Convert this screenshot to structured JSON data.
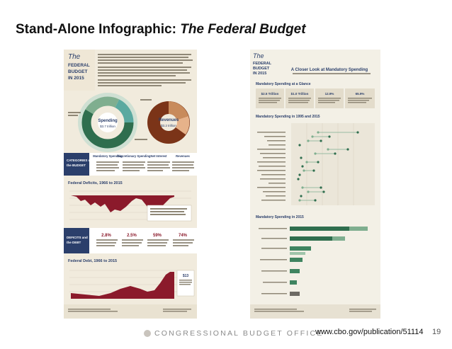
{
  "slide": {
    "title_prefix": "Stand-Alone Infographic: ",
    "title_italic": "The Federal Budget",
    "footer_org": "CONGRESSIONAL BUDGET OFFICE",
    "footer_url": "www.cbo.gov/publication/51114",
    "page_number": "19"
  },
  "left_infographic": {
    "title_line1": "The",
    "title_line2": "FEDERAL",
    "title_line3": "BUDGET",
    "title_line4": "IN 2015",
    "spending_label": "Spending",
    "spending_value": "$3.7 trillion",
    "revenues_label": "Revenues",
    "revenues_value": "$3.2 trillion",
    "categories_label_1": "CATEGORIES of",
    "categories_label_2": "the BUDGET",
    "category_mandatory": "Mandatory Spending",
    "category_discretionary": "Discretionary Spending",
    "category_net_interest": "Net Interest",
    "category_revenues": "Revenues",
    "deficits_title": "Federal Deficits, 1966 to 2015",
    "deficit_label_1": "DEFICITS and",
    "deficit_label_2": "the DEBT",
    "stat_1": "2.8%",
    "stat_2": "2.5%",
    "stat_3": "59%",
    "stat_4": "74%",
    "debt_title": "Federal Debt, 1966 to 2015",
    "debt_box_value": "$13"
  },
  "right_infographic": {
    "title_line1": "The",
    "title_line2": "FEDERAL",
    "title_line3": "BUDGET",
    "title_line4": "IN 2015",
    "header_text": "A Closer Look at Mandatory Spending",
    "glance_title": "Mandatory Spending at a Glance",
    "box_1": "$2.5 Trillion",
    "box_2": "$1.0 Trillion",
    "box_3": "12.9%",
    "box_4": "65.9%",
    "comparison_title": "Mandatory Spending in 1995 and 2015",
    "bars_title": "Mandatory Spending in 2015"
  },
  "colors": {
    "cream": "#f1ebdd",
    "green": "#2f6e4e",
    "navy": "#2b3f6b",
    "maroon": "#8b1a2b",
    "brown": "#7b3418",
    "accent_orange": "#c87a2d",
    "teal": "#5aa9a0"
  }
}
